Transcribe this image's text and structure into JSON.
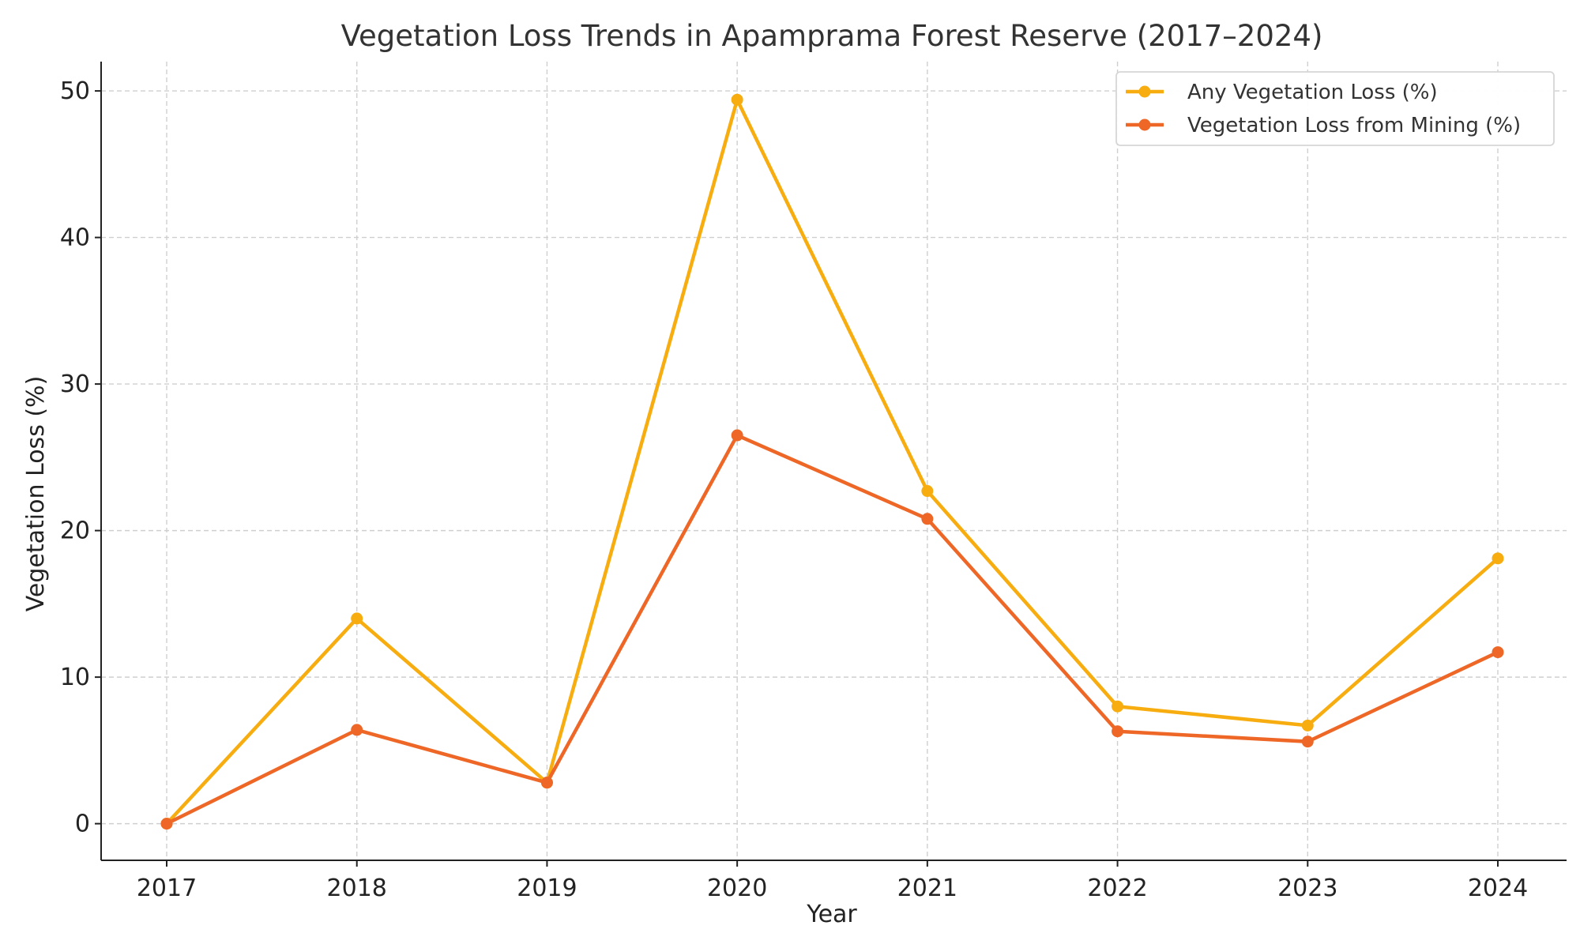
{
  "chart_data": {
    "type": "line",
    "title": "Vegetation Loss Trends in Apamprama Forest Reserve (2017–2024)",
    "xlabel": "Year",
    "ylabel": "Vegetation Loss (%)",
    "x": [
      "2017",
      "2018",
      "2019",
      "2020",
      "2021",
      "2022",
      "2023",
      "2024"
    ],
    "ylim": [
      -2.5,
      52
    ],
    "yticks": [
      "0",
      "10",
      "20",
      "30",
      "40",
      "50"
    ],
    "grid": true,
    "legend_position": "top-right",
    "series": [
      {
        "name": "Any Vegetation Loss (%)",
        "color": "#F7AD0F",
        "values": [
          0,
          14.0,
          2.8,
          49.4,
          22.7,
          8.0,
          6.7,
          18.1
        ]
      },
      {
        "name": "Vegetation Loss from Mining (%)",
        "color": "#EE6726",
        "values": [
          0,
          6.4,
          2.8,
          26.5,
          20.8,
          6.3,
          5.6,
          11.7
        ]
      }
    ]
  }
}
